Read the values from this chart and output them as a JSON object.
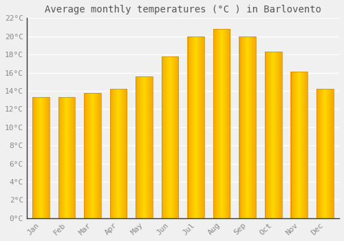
{
  "title": "Average monthly temperatures (°C ) in Barlovento",
  "months": [
    "Jan",
    "Feb",
    "Mar",
    "Apr",
    "May",
    "Jun",
    "Jul",
    "Aug",
    "Sep",
    "Oct",
    "Nov",
    "Dec"
  ],
  "values": [
    13.3,
    13.3,
    13.8,
    14.2,
    15.6,
    17.8,
    20.0,
    20.8,
    20.0,
    18.3,
    16.1,
    14.2
  ],
  "ylim": [
    0,
    22
  ],
  "yticks": [
    0,
    2,
    4,
    6,
    8,
    10,
    12,
    14,
    16,
    18,
    20,
    22
  ],
  "ytick_labels": [
    "0°C",
    "2°C",
    "4°C",
    "6°C",
    "8°C",
    "10°C",
    "12°C",
    "14°C",
    "16°C",
    "18°C",
    "20°C",
    "22°C"
  ],
  "bar_color_outer": "#F5A800",
  "bar_color_inner": "#FFD000",
  "bar_edge_color": "#CC8800",
  "background_color": "#f0f0f0",
  "plot_bg_color": "#f0f0f0",
  "grid_color": "#ffffff",
  "title_fontsize": 10,
  "tick_fontsize": 8,
  "tick_color": "#888888",
  "title_color": "#555555",
  "font_family": "monospace"
}
